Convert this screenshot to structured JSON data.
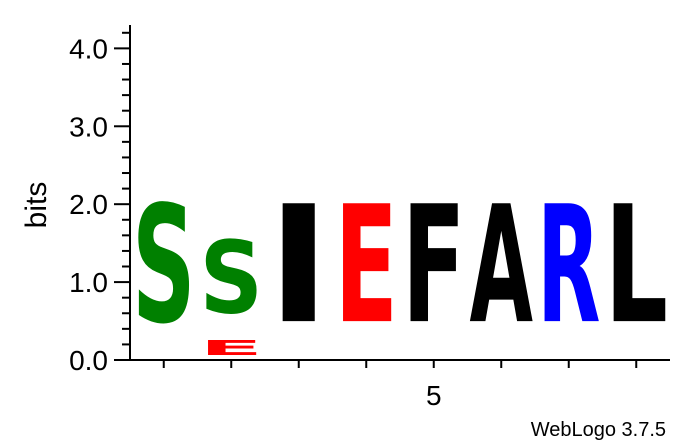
{
  "chart_data": {
    "type": "sequence-logo",
    "ylabel": "bits",
    "ylim": [
      0,
      4.3
    ],
    "yticks": [
      {
        "value": 0.0,
        "label": "0.0"
      },
      {
        "value": 1.0,
        "label": "1.0"
      },
      {
        "value": 2.0,
        "label": "2.0"
      },
      {
        "value": 3.0,
        "label": "3.0"
      },
      {
        "value": 4.0,
        "label": "4.0"
      }
    ],
    "xlim": [
      0.5,
      8.5
    ],
    "xticks": [
      {
        "value": 5,
        "label": "5"
      }
    ],
    "positions": [
      {
        "pos": 1,
        "stack": [
          {
            "letter": "S",
            "bits": 2.43,
            "color": "#008000"
          }
        ]
      },
      {
        "pos": 2,
        "stack": [
          {
            "letter": "E",
            "bits": 0.3,
            "color": "#ff0000"
          },
          {
            "letter": "S",
            "bits": 1.5,
            "color": "#008000"
          }
        ]
      },
      {
        "pos": 3,
        "stack": [
          {
            "letter": "I",
            "bits": 2.43,
            "color": "#000000"
          }
        ]
      },
      {
        "pos": 4,
        "stack": [
          {
            "letter": "E",
            "bits": 2.43,
            "color": "#ff0000"
          }
        ]
      },
      {
        "pos": 5,
        "stack": [
          {
            "letter": "F",
            "bits": 2.43,
            "color": "#000000"
          }
        ]
      },
      {
        "pos": 6,
        "stack": [
          {
            "letter": "A",
            "bits": 2.43,
            "color": "#000000"
          }
        ]
      },
      {
        "pos": 7,
        "stack": [
          {
            "letter": "R",
            "bits": 2.43,
            "color": "#0000ff"
          }
        ]
      },
      {
        "pos": 8,
        "stack": [
          {
            "letter": "L",
            "bits": 2.43,
            "color": "#000000"
          }
        ]
      }
    ]
  },
  "credit": "WebLogo 3.7.5"
}
